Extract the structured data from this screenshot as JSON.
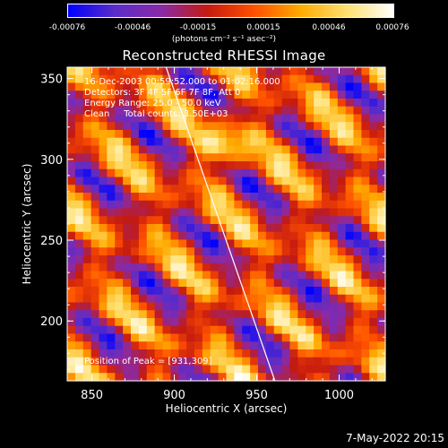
{
  "colorbar": {
    "ticks": [
      "-0.00076",
      "-0.00046",
      "-0.00015",
      "0.00015",
      "0.00046",
      "0.00076"
    ],
    "tick_values": [
      -0.00076,
      -0.00046,
      -0.00015,
      0.00015,
      0.00046,
      0.00076
    ],
    "unit": "(photons cm⁻² s⁻¹ asec⁻²)"
  },
  "info": {
    "time": "16-Dec-2003 00:59:52.000 to 01:02:16.000",
    "detectors": "Detectors: 3F 4F 5F 6F 7F 8F, Att 0",
    "energy": "Energy Range: 25.0 - 50.0 keV",
    "clean": "Clean     Total counts: 3.50E+03",
    "peak": "Position of Peak = [931,309]"
  },
  "footer": "7-May-2022 20:15",
  "chart_data": {
    "type": "heatmap",
    "title": "Reconstructed RHESSI Image",
    "xlabel": "Heliocentric X (arcsec)",
    "ylabel": "Heliocentric Y (arcsec)",
    "xlim": [
      835,
      1028
    ],
    "ylim": [
      163,
      357
    ],
    "xticks": [
      850,
      900,
      950,
      1000
    ],
    "yticks": [
      200,
      250,
      300,
      350
    ],
    "zlim": [
      -0.00076,
      0.00076
    ],
    "peak": [
      931,
      309
    ],
    "limb_line": [
      [
        895,
        357
      ],
      [
        961,
        163
      ]
    ],
    "colors": {
      "background": "#000000",
      "colormap": [
        "#0000ff",
        "#5a2cc8",
        "#8a2aa8",
        "#c41a10",
        "#ff5000",
        "#ffaa00",
        "#ffe070",
        "#ffffff"
      ]
    }
  }
}
